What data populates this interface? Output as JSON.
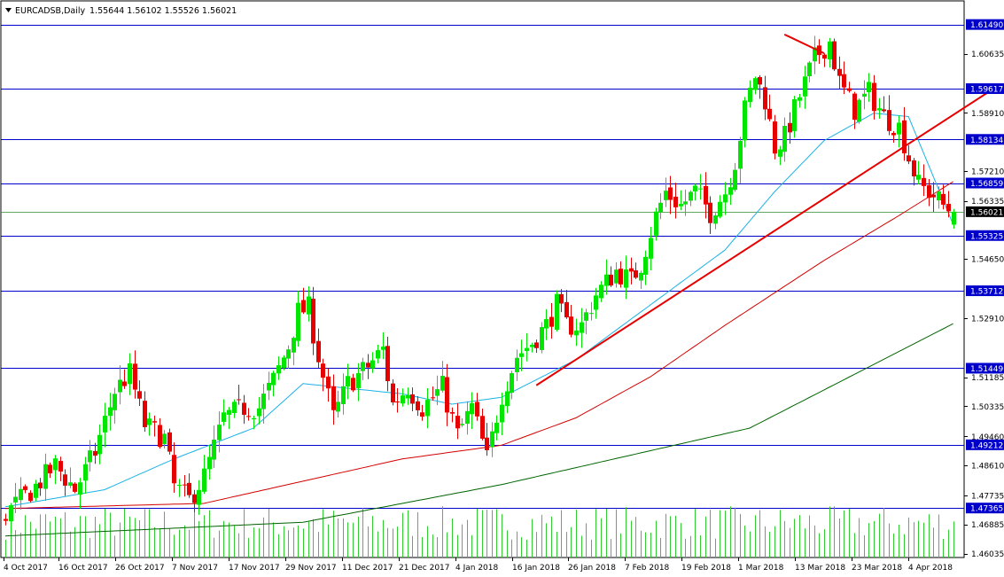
{
  "header": {
    "symbol": "EURCADSB,Daily",
    "ohlc": "1.55644 1.56102 1.55526 1.56021"
  },
  "chart_data": {
    "type": "candlestick",
    "symbol": "EURCADSB",
    "timeframe": "Daily",
    "ylim": [
      1.4592,
      1.6218
    ],
    "grid": false,
    "y_ticks": [
      "1.60635",
      "1.58910",
      "1.57210",
      "1.56335",
      "1.54650",
      "1.52910",
      "1.51185",
      "1.50335",
      "1.49460",
      "1.48610",
      "1.47735",
      "1.46885",
      "1.46035"
    ],
    "x_ticks": [
      "4 Oct 2017",
      "16 Oct 2017",
      "26 Oct 2017",
      "7 Nov 2017",
      "17 Nov 2017",
      "29 Nov 2017",
      "11 Dec 2017",
      "21 Dec 2017",
      "4 Jan 2018",
      "16 Jan 2018",
      "26 Jan 2018",
      "7 Feb 2018",
      "19 Feb 2018",
      "1 Mar 2018",
      "13 Mar 2018",
      "23 Mar 2018",
      "4 Apr 2018"
    ],
    "levels": [
      "1.61490",
      "1.59617",
      "1.58134",
      "1.56859",
      "1.55325",
      "1.53712",
      "1.51449",
      "1.49212",
      "1.47365"
    ],
    "current_price": "1.56021",
    "colors": {
      "up": "#00e600",
      "down": "#e60000",
      "level_line": "#0000cc",
      "price_line": "#2e8b2e",
      "ma_short": "#1ab2e6",
      "ma_mid": "#d40000",
      "ma_long": "#006400",
      "trendline": "#e60000",
      "volume": "#33cc33"
    },
    "close_path": [
      [
        0,
        1.472
      ],
      [
        6,
        1.48
      ],
      [
        10,
        1.486
      ],
      [
        14,
        1.479
      ],
      [
        18,
        1.49
      ],
      [
        22,
        1.508
      ],
      [
        25,
        1.513
      ],
      [
        28,
        1.498
      ],
      [
        32,
        1.494
      ],
      [
        34,
        1.48
      ],
      [
        37,
        1.476
      ],
      [
        40,
        1.483
      ],
      [
        44,
        1.5
      ],
      [
        48,
        1.503
      ],
      [
        51,
        1.503
      ],
      [
        54,
        1.511
      ],
      [
        57,
        1.521
      ],
      [
        59,
        1.531
      ],
      [
        61,
        1.532
      ],
      [
        63,
        1.518
      ],
      [
        66,
        1.5
      ],
      [
        69,
        1.51
      ],
      [
        73,
        1.515
      ],
      [
        76,
        1.52
      ],
      [
        78,
        1.504
      ],
      [
        81,
        1.509
      ],
      [
        84,
        1.503
      ],
      [
        88,
        1.509
      ],
      [
        91,
        1.495
      ],
      [
        94,
        1.503
      ],
      [
        97,
        1.488
      ],
      [
        100,
        1.507
      ],
      [
        103,
        1.518
      ],
      [
        106,
        1.522
      ],
      [
        109,
        1.527
      ],
      [
        111,
        1.533
      ],
      [
        113,
        1.527
      ],
      [
        116,
        1.527
      ],
      [
        119,
        1.536
      ],
      [
        123,
        1.543
      ],
      [
        126,
        1.54
      ],
      [
        128,
        1.545
      ],
      [
        131,
        1.559
      ],
      [
        133,
        1.566
      ],
      [
        136,
        1.562
      ],
      [
        139,
        1.566
      ],
      [
        142,
        1.56
      ],
      [
        145,
        1.566
      ],
      [
        147,
        1.575
      ],
      [
        149,
        1.59
      ],
      [
        151,
        1.6
      ],
      [
        153,
        1.593
      ],
      [
        155,
        1.579
      ],
      [
        157,
        1.582
      ],
      [
        160,
        1.594
      ],
      [
        163,
        1.605
      ],
      [
        166,
        1.61
      ],
      [
        168,
        1.598
      ],
      [
        171,
        1.59
      ],
      [
        174,
        1.595
      ],
      [
        177,
        1.588
      ],
      [
        180,
        1.585
      ],
      [
        182,
        1.576
      ],
      [
        184,
        1.568
      ],
      [
        187,
        1.565
      ],
      [
        189,
        1.562
      ],
      [
        191,
        1.5602
      ]
    ],
    "ma_short": [
      [
        0,
        1.474
      ],
      [
        20,
        1.479
      ],
      [
        34,
        1.488
      ],
      [
        50,
        1.497
      ],
      [
        60,
        1.51
      ],
      [
        80,
        1.507
      ],
      [
        90,
        1.504
      ],
      [
        100,
        1.506
      ],
      [
        115,
        1.517
      ],
      [
        130,
        1.533
      ],
      [
        145,
        1.549
      ],
      [
        155,
        1.566
      ],
      [
        165,
        1.581
      ],
      [
        175,
        1.589
      ],
      [
        182,
        1.588
      ],
      [
        191,
        1.5565
      ]
    ],
    "ma_mid": [
      [
        0,
        1.4735
      ],
      [
        40,
        1.475
      ],
      [
        80,
        1.488
      ],
      [
        100,
        1.492
      ],
      [
        115,
        1.5
      ],
      [
        130,
        1.512
      ],
      [
        145,
        1.527
      ],
      [
        165,
        1.546
      ],
      [
        180,
        1.559
      ],
      [
        191,
        1.569
      ]
    ],
    "ma_long": [
      [
        0,
        1.4655
      ],
      [
        60,
        1.4695
      ],
      [
        100,
        1.4805
      ],
      [
        150,
        1.497
      ],
      [
        191,
        1.5275
      ]
    ],
    "trendline": {
      "from": [
        107,
        1.5095
      ],
      "to": [
        199,
        1.596
      ]
    },
    "trendline_top": {
      "from": [
        157,
        1.612
      ],
      "to": [
        165,
        1.6065
      ]
    }
  }
}
